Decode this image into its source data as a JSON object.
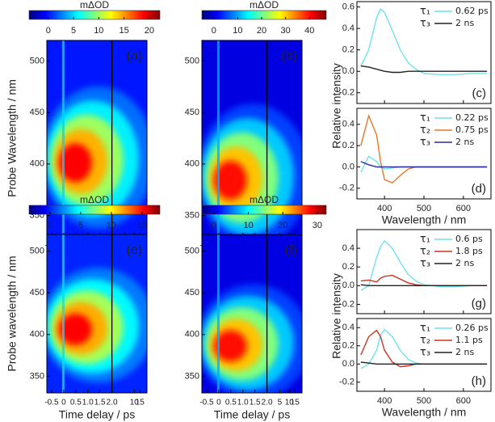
{
  "chart_data": [
    {
      "type": "heatmap",
      "label": "(a)",
      "colorbar_label": "mΔOD",
      "clim": [
        -3.8,
        22.1
      ],
      "cticks": [
        0,
        5,
        10,
        15,
        20
      ],
      "colormap": [
        "#00007f",
        "#0000ff",
        "#007fff",
        "#00ffff",
        "#7fff7f",
        "#ffff00",
        "#ff7f00",
        "#ff0000",
        "#7f0000"
      ],
      "xlabel": "Time delay / ps",
      "ylabel": "Probe Wavelength / nm",
      "xlim": [
        -0.7,
        25
      ],
      "x_break": 2,
      "xticks": [
        -0.5,
        0,
        0.5,
        {
          "value": 1,
          "label": "1.0"
        },
        1.5,
        {
          "value": 2,
          "label": "2.0"
        },
        5,
        10,
        15
      ],
      "ylim": [
        330,
        520
      ],
      "yticks": [
        350,
        400,
        450,
        500
      ]
    },
    {
      "type": "heatmap",
      "label": "(b)",
      "colorbar_label": "mΔOD",
      "clim": [
        -5,
        47
      ],
      "cticks": [
        0,
        10,
        20,
        30,
        40
      ],
      "colormap": [
        "#00007f",
        "#0000ff",
        "#007fff",
        "#00ffff",
        "#7fff7f",
        "#ffff00",
        "#ff7f00",
        "#ff0000",
        "#7f0000"
      ],
      "xlabel": "Time delay / ps",
      "xlim": [
        -0.7,
        25
      ],
      "x_break": 2,
      "xticks": [
        -0.5,
        0,
        0.5,
        {
          "value": 1,
          "label": "1.0"
        },
        1.5,
        {
          "value": 2,
          "label": "2.0"
        },
        5,
        10,
        15
      ],
      "ylim": [
        330,
        520
      ],
      "yticks": [
        350,
        400,
        450,
        500
      ]
    },
    {
      "type": "line",
      "label": "(c)",
      "ylabel": "Relative intensity",
      "xlim": [
        330,
        670
      ],
      "xticks": [
        400,
        500,
        600
      ],
      "show_xtick_labels": false,
      "ylim": [
        -0.3,
        0.65
      ],
      "yticks": [
        -0.2,
        {
          "value": 0,
          "label": "0.0"
        },
        0.2,
        0.4,
        0.6
      ],
      "x": [
        340,
        360,
        380,
        390,
        400,
        420,
        440,
        460,
        480,
        500,
        540,
        580,
        620,
        660
      ],
      "series": [
        {
          "name": "τ₁",
          "lifetime": "0.62 ps",
          "color": "#6fe3ea",
          "values": [
            0.05,
            0.2,
            0.5,
            0.58,
            0.55,
            0.38,
            0.2,
            0.08,
            0.02,
            -0.02,
            -0.03,
            -0.03,
            -0.02,
            -0.02
          ]
        },
        {
          "name": "τ₃",
          "lifetime": "2 ns",
          "color": "#222222",
          "values": [
            0.05,
            0.04,
            0.02,
            0.01,
            0,
            -0.01,
            -0.01,
            0,
            0,
            0,
            0,
            0,
            0,
            0
          ]
        }
      ]
    },
    {
      "type": "line",
      "label": "(d)",
      "xlabel": "Wavelength / nm",
      "xlim": [
        330,
        670
      ],
      "xticks": [
        400,
        500,
        600
      ],
      "show_xtick_labels": true,
      "ylim": [
        -0.3,
        0.55
      ],
      "yticks": [
        -0.2,
        {
          "value": 0,
          "label": "0.0"
        },
        0.2,
        0.4
      ],
      "x": [
        340,
        360,
        380,
        390,
        400,
        420,
        440,
        460,
        480,
        500,
        540,
        580,
        620,
        660
      ],
      "series": [
        {
          "name": "τ₁",
          "lifetime": "0.22 ps",
          "color": "#6fe3ea",
          "values": [
            -0.05,
            0.1,
            0.05,
            0,
            -0.02,
            -0.01,
            0,
            0,
            0,
            0,
            0,
            0,
            0,
            0
          ]
        },
        {
          "name": "τ₂",
          "lifetime": "0.75 ps",
          "color": "#e8742a",
          "values": [
            0.2,
            0.48,
            0.3,
            0.05,
            -0.12,
            -0.15,
            -0.08,
            -0.02,
            0,
            0,
            0,
            0,
            0,
            0
          ]
        },
        {
          "name": "τ₃",
          "lifetime": "2 ns",
          "color": "#2a2aa0",
          "values": [
            0.05,
            0.02,
            0,
            0,
            0,
            0,
            0,
            0,
            0,
            0,
            0,
            0,
            0,
            0
          ]
        }
      ]
    },
    {
      "type": "heatmap",
      "label": "(e)",
      "colorbar_label": "mΔOD",
      "clim": [
        -3.4,
        17.9
      ],
      "cticks": [
        0,
        5,
        10,
        15
      ],
      "colormap": [
        "#00007f",
        "#0000ff",
        "#007fff",
        "#00ffff",
        "#7fff7f",
        "#ffff00",
        "#ff7f00",
        "#ff0000",
        "#7f0000"
      ],
      "xlabel": "Time delay / ps",
      "ylabel": "Probe wavelength / nm",
      "xlim": [
        -0.7,
        25
      ],
      "x_break": 2,
      "xticks": [
        -0.5,
        0,
        0.5,
        {
          "value": 1,
          "label": "1.0"
        },
        1.5,
        {
          "value": 2,
          "label": "2.0"
        },
        10,
        15
      ],
      "ylim": [
        330,
        520
      ],
      "yticks": [
        350,
        400,
        450,
        500
      ]
    },
    {
      "type": "heatmap",
      "label": "(f)",
      "colorbar_label": "mΔOD",
      "clim": [
        -3.5,
        32.6
      ],
      "cticks": [
        0,
        10,
        20,
        30
      ],
      "colormap": [
        "#00007f",
        "#0000ff",
        "#007fff",
        "#00ffff",
        "#7fff7f",
        "#ffff00",
        "#ff7f00",
        "#ff0000",
        "#7f0000"
      ],
      "xlabel": "Time delay / ps",
      "xlim": [
        -0.7,
        25
      ],
      "x_break": 2,
      "xticks": [
        -0.5,
        0,
        0.5,
        {
          "value": 1,
          "label": "1.0"
        },
        1.5,
        {
          "value": 2,
          "label": "2.0"
        },
        5,
        10,
        15
      ],
      "ylim": [
        330,
        520
      ],
      "yticks": [
        350,
        400,
        450,
        500
      ]
    },
    {
      "type": "line",
      "label": "(g)",
      "ylabel": "Relative intensity",
      "xlim": [
        330,
        670
      ],
      "xticks": [
        400,
        500,
        600
      ],
      "show_xtick_labels": false,
      "ylim": [
        -0.3,
        0.6
      ],
      "yticks": [
        -0.2,
        {
          "value": 0,
          "label": "0.0"
        },
        0.2,
        0.4
      ],
      "x": [
        340,
        360,
        380,
        390,
        400,
        420,
        440,
        460,
        480,
        500,
        540,
        580,
        620,
        660
      ],
      "series": [
        {
          "name": "τ₁",
          "lifetime": "0.6 ps",
          "color": "#6fe3ea",
          "values": [
            -0.05,
            0,
            0.3,
            0.42,
            0.48,
            0.4,
            0.25,
            0.12,
            0.05,
            0.01,
            -0.01,
            -0.01,
            0,
            0
          ]
        },
        {
          "name": "τ₂",
          "lifetime": "1.8 ps",
          "color": "#d03020",
          "values": [
            0.05,
            0.06,
            0.04,
            0.08,
            0.1,
            0.11,
            0.07,
            0.03,
            0.01,
            0,
            0,
            0,
            0,
            0
          ]
        },
        {
          "name": "τ₃",
          "lifetime": "2 ns",
          "color": "#222222",
          "values": [
            0.01,
            0,
            0,
            0,
            0,
            0,
            0,
            0,
            0,
            0,
            0,
            0,
            0,
            0
          ]
        }
      ]
    },
    {
      "type": "line",
      "label": "(h)",
      "xlabel": "Wavelength / nm",
      "xlim": [
        330,
        670
      ],
      "xticks": [
        400,
        500,
        600
      ],
      "show_xtick_labels": true,
      "ylim": [
        -0.3,
        0.5
      ],
      "yticks": [
        -0.2,
        {
          "value": 0,
          "label": "0.0"
        },
        0.2,
        0.4
      ],
      "x": [
        340,
        360,
        380,
        390,
        400,
        420,
        440,
        460,
        480,
        500,
        540,
        580,
        620,
        660
      ],
      "series": [
        {
          "name": "τ₁",
          "lifetime": "0.26 ps",
          "color": "#6fe3ea",
          "values": [
            -0.05,
            0,
            0.15,
            0.32,
            0.38,
            0.3,
            0.15,
            0.05,
            0.01,
            0,
            0,
            0,
            0,
            0
          ]
        },
        {
          "name": "τ₂",
          "lifetime": "1.1 ps",
          "color": "#d03020",
          "values": [
            0.1,
            0.3,
            0.37,
            0.3,
            0.15,
            0.02,
            -0.03,
            -0.02,
            0,
            0,
            0,
            0,
            0,
            0
          ]
        },
        {
          "name": "τ₃",
          "lifetime": "2 ns",
          "color": "#222222",
          "values": [
            0.02,
            0.01,
            0,
            0,
            0,
            0,
            0,
            0,
            0,
            0,
            0,
            0,
            0,
            0
          ]
        }
      ]
    }
  ]
}
